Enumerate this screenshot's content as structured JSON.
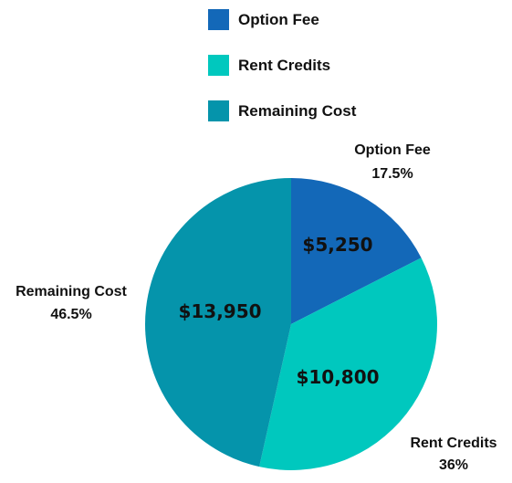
{
  "chart_data": {
    "type": "pie",
    "categories": [
      "Option Fee",
      "Rent Credits",
      "Remaining Cost"
    ],
    "values": [
      5250,
      10800,
      13950
    ],
    "value_labels": [
      "$5,250",
      "$10,800",
      "$13,950"
    ],
    "percent_labels": [
      "17.5%",
      "36%",
      "46.5%"
    ],
    "colors": [
      "#1368b8",
      "#00c8be",
      "#0594ab"
    ],
    "legend": {
      "placement": "top-center",
      "entries": [
        "Option Fee",
        "Rent Credits",
        "Remaining Cost"
      ]
    }
  }
}
